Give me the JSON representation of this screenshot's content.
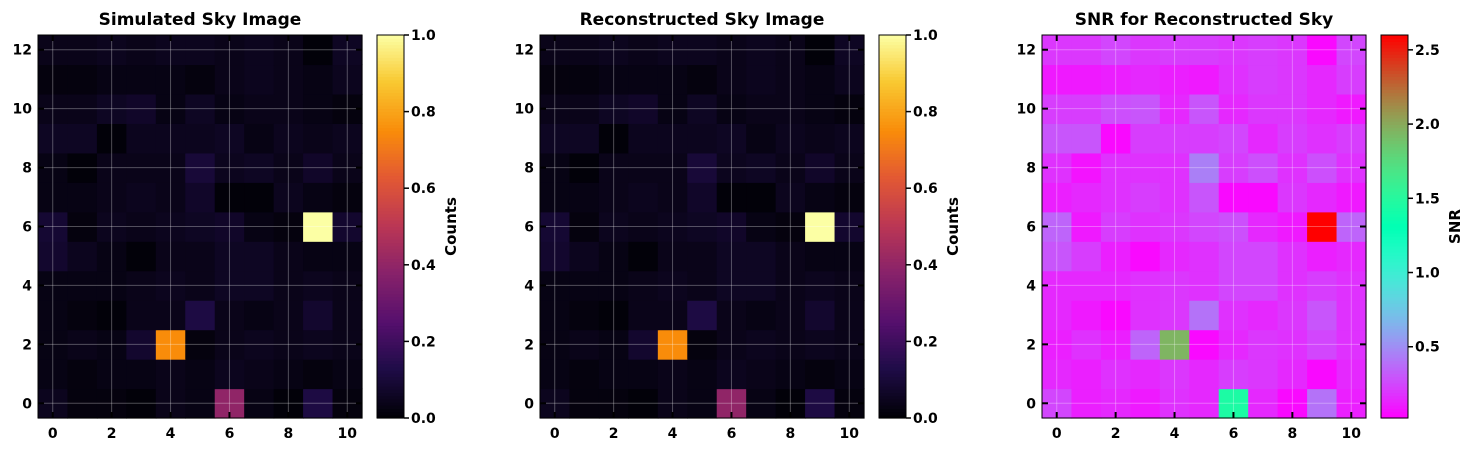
{
  "colors": {
    "background": "#ffffff",
    "axis": "#000000",
    "grid": "#ffffff"
  },
  "chart_data": [
    {
      "type": "heatmap",
      "title": "Simulated Sky Image",
      "xlabel": "",
      "ylabel": "",
      "colormap": "inferno",
      "colorbar_label": "Counts",
      "vmin": 0,
      "vmax": 1.0,
      "colorbar_ticks": [
        "0.0",
        "0.2",
        "0.4",
        "0.6",
        "0.8",
        "1.0"
      ],
      "xlim": [
        -0.5,
        10.5
      ],
      "ylim": [
        -0.5,
        12.5
      ],
      "xticks": [
        0,
        2,
        4,
        6,
        8,
        10
      ],
      "yticks": [
        0,
        2,
        4,
        6,
        8,
        10,
        12
      ],
      "grid": true,
      "rows_bottom_to_top": [
        [
          0.05,
          0.02,
          0.02,
          0.01,
          0.04,
          0.03,
          0.4,
          0.03,
          0.01,
          0.12,
          0.02
        ],
        [
          0.03,
          0.02,
          0.03,
          0.03,
          0.04,
          0.03,
          0.05,
          0.04,
          0.03,
          0.02,
          0.03
        ],
        [
          0.03,
          0.04,
          0.03,
          0.08,
          0.75,
          0.02,
          0.04,
          0.05,
          0.04,
          0.05,
          0.04
        ],
        [
          0.03,
          0.02,
          0.01,
          0.04,
          0.04,
          0.12,
          0.04,
          0.03,
          0.04,
          0.08,
          0.04
        ],
        [
          0.03,
          0.03,
          0.03,
          0.04,
          0.05,
          0.04,
          0.06,
          0.06,
          0.04,
          0.05,
          0.04
        ],
        [
          0.08,
          0.05,
          0.03,
          0.01,
          0.04,
          0.04,
          0.06,
          0.06,
          0.04,
          0.03,
          0.03
        ],
        [
          0.09,
          0.02,
          0.05,
          0.04,
          0.05,
          0.06,
          0.07,
          0.03,
          0.02,
          1.0,
          0.08
        ],
        [
          0.03,
          0.03,
          0.04,
          0.05,
          0.04,
          0.07,
          0.01,
          0.01,
          0.05,
          0.03,
          0.02
        ],
        [
          0.03,
          0.01,
          0.04,
          0.04,
          0.04,
          0.1,
          0.05,
          0.06,
          0.04,
          0.07,
          0.04
        ],
        [
          0.06,
          0.06,
          0.01,
          0.05,
          0.05,
          0.05,
          0.06,
          0.03,
          0.05,
          0.04,
          0.05
        ],
        [
          0.04,
          0.04,
          0.06,
          0.07,
          0.03,
          0.06,
          0.03,
          0.04,
          0.04,
          0.03,
          0.02
        ],
        [
          0.02,
          0.02,
          0.03,
          0.03,
          0.03,
          0.02,
          0.04,
          0.05,
          0.04,
          0.03,
          0.05
        ],
        [
          0.04,
          0.04,
          0.05,
          0.04,
          0.05,
          0.05,
          0.04,
          0.05,
          0.04,
          0.01,
          0.06
        ]
      ]
    },
    {
      "type": "heatmap",
      "title": "Reconstructed Sky Image",
      "xlabel": "",
      "ylabel": "",
      "colormap": "inferno",
      "colorbar_label": "Counts",
      "vmin": 0,
      "vmax": 1.0,
      "colorbar_ticks": [
        "0.0",
        "0.2",
        "0.4",
        "0.6",
        "0.8",
        "1.0"
      ],
      "xlim": [
        -0.5,
        10.5
      ],
      "ylim": [
        -0.5,
        12.5
      ],
      "xticks": [
        0,
        2,
        4,
        6,
        8,
        10
      ],
      "yticks": [
        0,
        2,
        4,
        6,
        8,
        10,
        12
      ],
      "grid": true,
      "rows_bottom_to_top": [
        [
          0.05,
          0.02,
          0.02,
          0.01,
          0.04,
          0.03,
          0.4,
          0.03,
          0.01,
          0.12,
          0.02
        ],
        [
          0.03,
          0.02,
          0.03,
          0.03,
          0.04,
          0.03,
          0.05,
          0.04,
          0.03,
          0.02,
          0.03
        ],
        [
          0.03,
          0.04,
          0.03,
          0.08,
          0.75,
          0.02,
          0.04,
          0.05,
          0.04,
          0.05,
          0.04
        ],
        [
          0.03,
          0.02,
          0.01,
          0.04,
          0.04,
          0.12,
          0.04,
          0.03,
          0.04,
          0.08,
          0.04
        ],
        [
          0.03,
          0.03,
          0.03,
          0.04,
          0.05,
          0.04,
          0.06,
          0.06,
          0.04,
          0.05,
          0.04
        ],
        [
          0.08,
          0.05,
          0.03,
          0.01,
          0.04,
          0.04,
          0.06,
          0.06,
          0.04,
          0.03,
          0.03
        ],
        [
          0.09,
          0.02,
          0.05,
          0.04,
          0.05,
          0.06,
          0.07,
          0.03,
          0.02,
          1.0,
          0.08
        ],
        [
          0.03,
          0.03,
          0.04,
          0.05,
          0.04,
          0.07,
          0.01,
          0.01,
          0.05,
          0.03,
          0.02
        ],
        [
          0.03,
          0.01,
          0.04,
          0.04,
          0.04,
          0.1,
          0.05,
          0.06,
          0.04,
          0.07,
          0.04
        ],
        [
          0.06,
          0.06,
          0.01,
          0.05,
          0.05,
          0.05,
          0.06,
          0.03,
          0.05,
          0.04,
          0.05
        ],
        [
          0.04,
          0.04,
          0.06,
          0.07,
          0.03,
          0.06,
          0.03,
          0.04,
          0.04,
          0.03,
          0.02
        ],
        [
          0.02,
          0.02,
          0.03,
          0.03,
          0.03,
          0.02,
          0.04,
          0.05,
          0.04,
          0.03,
          0.05
        ],
        [
          0.04,
          0.04,
          0.05,
          0.04,
          0.05,
          0.05,
          0.04,
          0.05,
          0.04,
          0.01,
          0.06
        ]
      ]
    },
    {
      "type": "heatmap",
      "title": "SNR for Reconstructed Sky",
      "xlabel": "",
      "ylabel": "",
      "colormap": "rainbow",
      "colorbar_label": "SNR",
      "vmin": 0.02,
      "vmax": 2.6,
      "colorbar_ticks": [
        "0.5",
        "1.0",
        "1.5",
        "2.0",
        "2.5"
      ],
      "xlim": [
        -0.5,
        10.5
      ],
      "ylim": [
        -0.5,
        12.5
      ],
      "xticks": [
        0,
        2,
        4,
        6,
        8,
        10
      ],
      "yticks": [
        0,
        2,
        4,
        6,
        8,
        10,
        12
      ],
      "grid": true,
      "rows_bottom_to_top": [
        [
          0.25,
          0.12,
          0.15,
          0.1,
          0.18,
          0.15,
          1.45,
          0.15,
          0.05,
          0.4,
          0.12
        ],
        [
          0.15,
          0.12,
          0.18,
          0.15,
          0.2,
          0.15,
          0.22,
          0.2,
          0.15,
          0.05,
          0.15
        ],
        [
          0.12,
          0.18,
          0.12,
          0.35,
          1.95,
          0.05,
          0.15,
          0.2,
          0.18,
          0.25,
          0.18
        ],
        [
          0.15,
          0.1,
          0.05,
          0.18,
          0.2,
          0.4,
          0.18,
          0.15,
          0.2,
          0.3,
          0.18
        ],
        [
          0.15,
          0.15,
          0.15,
          0.18,
          0.2,
          0.18,
          0.25,
          0.25,
          0.18,
          0.22,
          0.18
        ],
        [
          0.3,
          0.22,
          0.12,
          0.05,
          0.15,
          0.18,
          0.25,
          0.25,
          0.18,
          0.12,
          0.15
        ],
        [
          0.35,
          0.1,
          0.22,
          0.18,
          0.2,
          0.25,
          0.28,
          0.15,
          0.1,
          2.6,
          0.35
        ],
        [
          0.12,
          0.15,
          0.18,
          0.22,
          0.18,
          0.3,
          0.05,
          0.05,
          0.2,
          0.15,
          0.1
        ],
        [
          0.18,
          0.08,
          0.18,
          0.18,
          0.18,
          0.45,
          0.22,
          0.28,
          0.18,
          0.28,
          0.18
        ],
        [
          0.3,
          0.3,
          0.05,
          0.22,
          0.22,
          0.22,
          0.25,
          0.15,
          0.22,
          0.18,
          0.22
        ],
        [
          0.22,
          0.22,
          0.28,
          0.3,
          0.15,
          0.3,
          0.15,
          0.2,
          0.2,
          0.15,
          0.1
        ],
        [
          0.1,
          0.1,
          0.12,
          0.15,
          0.12,
          0.1,
          0.18,
          0.22,
          0.2,
          0.15,
          0.22
        ],
        [
          0.2,
          0.2,
          0.25,
          0.2,
          0.22,
          0.22,
          0.2,
          0.22,
          0.2,
          0.05,
          0.25
        ]
      ]
    }
  ]
}
